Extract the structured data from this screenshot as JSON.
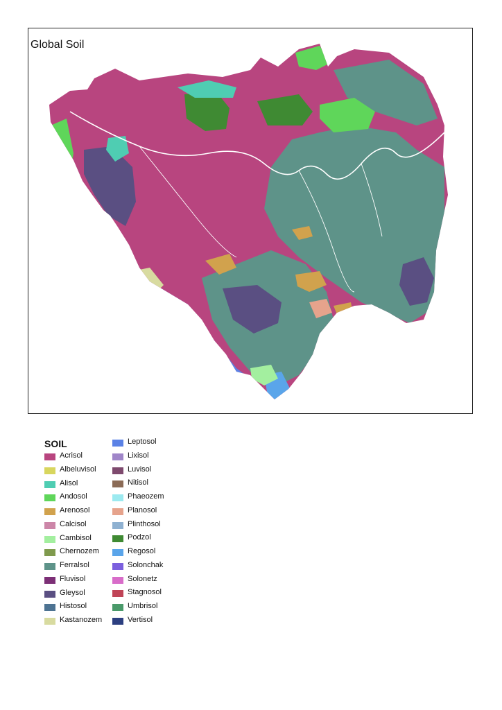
{
  "map": {
    "title": "Global Soil",
    "region_colors": {
      "base": "#b8457f",
      "ferralsol": "#5e9389",
      "gleysol": "#5a4f82",
      "leptosol": "#5b82e6",
      "regosol": "#5aa5ea",
      "podzol": "#3f8a33",
      "alisol": "#4fcdb2",
      "andosol": "#5fd65a",
      "arenosol": "#d1a24d",
      "cambisol": "#a3ef9f",
      "kastanozem": "#d8dba0",
      "planosol": "#e6a38c",
      "river": "#ffffff"
    }
  },
  "legend": {
    "title": "SOIL",
    "items": [
      {
        "label": "Acrisol",
        "color": "#b8457f"
      },
      {
        "label": "Albeluvisol",
        "color": "#d8d65e"
      },
      {
        "label": "Alisol",
        "color": "#4fcdb2"
      },
      {
        "label": "Andosol",
        "color": "#5fd65a"
      },
      {
        "label": "Arenosol",
        "color": "#d1a24d"
      },
      {
        "label": "Calcisol",
        "color": "#cc86a8"
      },
      {
        "label": "Cambisol",
        "color": "#a3ef9f"
      },
      {
        "label": "Chernozem",
        "color": "#7f9a4d"
      },
      {
        "label": "Ferralsol",
        "color": "#5e9389"
      },
      {
        "label": "Fluvisol",
        "color": "#7c2f76"
      },
      {
        "label": "Gleysol",
        "color": "#5a4f82"
      },
      {
        "label": "Histosol",
        "color": "#4d7392"
      },
      {
        "label": "Kastanozem",
        "color": "#d8dba0"
      },
      {
        "label": "Leptosol",
        "color": "#5b82e6"
      },
      {
        "label": "Lixisol",
        "color": "#a086c9"
      },
      {
        "label": "Luvisol",
        "color": "#7e4a6e"
      },
      {
        "label": "Nitisol",
        "color": "#8b6b56"
      },
      {
        "label": "Phaeozem",
        "color": "#9ceaf0"
      },
      {
        "label": "Planosol",
        "color": "#e6a38c"
      },
      {
        "label": "Plinthosol",
        "color": "#8fb1d1"
      },
      {
        "label": "Podzol",
        "color": "#3f8a33"
      },
      {
        "label": "Regosol",
        "color": "#5aa5ea"
      },
      {
        "label": "Solonchak",
        "color": "#7b5fde"
      },
      {
        "label": "Solonetz",
        "color": "#d86cc9"
      },
      {
        "label": "Stagnosol",
        "color": "#c04457"
      },
      {
        "label": "Umbrisol",
        "color": "#4a9a6a"
      },
      {
        "label": "Vertisol",
        "color": "#2c3f80"
      }
    ]
  }
}
